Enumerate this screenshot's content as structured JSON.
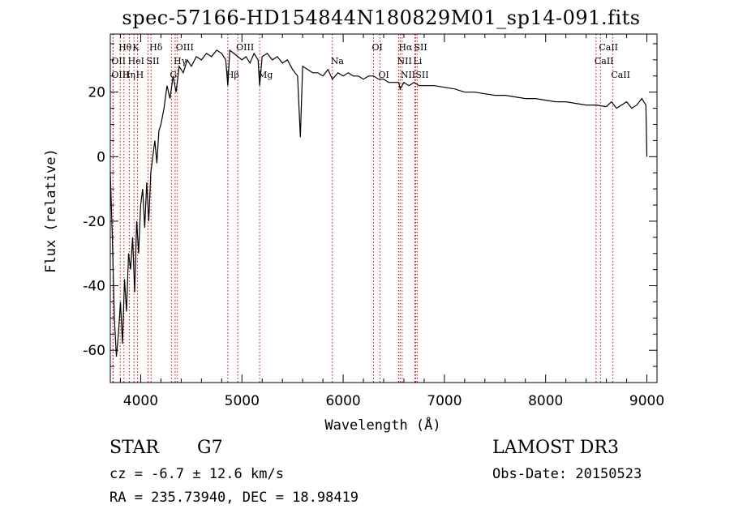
{
  "chart_data": {
    "type": "line",
    "title": "spec-57166-HD154844N180829M01_sp14-091.fits",
    "xlabel": "Wavelength (Å)",
    "ylabel": "Flux (relative)",
    "xlim": [
      3700,
      9100
    ],
    "ylim": [
      -70,
      38
    ],
    "x_ticks": [
      4000,
      5000,
      6000,
      7000,
      8000,
      9000
    ],
    "y_ticks": [
      -60,
      -40,
      -20,
      0,
      20
    ],
    "grid": false,
    "series": [
      {
        "x": [
          3700,
          3720,
          3740,
          3760,
          3780,
          3800,
          3820,
          3840,
          3860,
          3880,
          3900,
          3920,
          3940,
          3960,
          3980,
          4000,
          4020,
          4040,
          4060,
          4080,
          4100,
          4120,
          4140,
          4160,
          4180,
          4200,
          4230,
          4260,
          4290,
          4320,
          4350,
          4380,
          4420,
          4460,
          4500,
          4550,
          4600,
          4650,
          4700,
          4750,
          4800,
          4840,
          4861,
          4880,
          4920,
          4960,
          5000,
          5040,
          5080,
          5120,
          5160,
          5175,
          5200,
          5250,
          5300,
          5350,
          5400,
          5450,
          5500,
          5550,
          5577,
          5600,
          5650,
          5700,
          5750,
          5800,
          5850,
          5893,
          5950,
          6000,
          6050,
          6100,
          6150,
          6200,
          6250,
          6300,
          6350,
          6400,
          6450,
          6500,
          6550,
          6563,
          6600,
          6650,
          6700,
          6750,
          6800,
          6900,
          7000,
          7100,
          7200,
          7300,
          7400,
          7500,
          7600,
          7700,
          7800,
          7900,
          8000,
          8100,
          8200,
          8300,
          8400,
          8500,
          8600,
          8650,
          8700,
          8750,
          8800,
          8850,
          8900,
          8950,
          8990,
          9000
        ],
        "y": [
          -5,
          -25,
          -50,
          -62,
          -55,
          -45,
          -58,
          -38,
          -48,
          -30,
          -35,
          -25,
          -42,
          -20,
          -30,
          -15,
          -10,
          -22,
          -8,
          -20,
          -5,
          0,
          5,
          -2,
          8,
          10,
          15,
          22,
          18,
          25,
          20,
          28,
          26,
          30,
          28,
          31,
          30,
          32,
          31,
          33,
          32,
          30,
          22,
          33,
          32,
          31,
          30,
          31,
          29,
          32,
          30,
          22,
          31,
          32,
          30,
          31,
          29,
          30,
          27,
          25,
          6,
          28,
          27,
          26,
          26,
          25,
          27,
          24,
          26,
          25,
          26,
          25,
          25,
          24,
          25,
          25,
          24,
          24,
          23,
          23,
          23,
          21,
          23,
          22,
          23,
          22,
          22,
          22,
          21.5,
          21,
          20,
          20,
          19.5,
          19,
          19,
          18.5,
          18,
          18,
          17.5,
          17,
          17,
          16.5,
          16,
          16,
          15.5,
          17,
          15,
          16,
          17,
          15,
          16,
          18,
          16,
          0
        ]
      }
    ],
    "line_markers": [
      {
        "label": "Hθ",
        "x": 3798,
        "row": 1
      },
      {
        "label": "OII",
        "x": 3727,
        "row": 2
      },
      {
        "label": "OIII",
        "x": 3727,
        "row": 3
      },
      {
        "label": "K",
        "x": 3934,
        "row": 1
      },
      {
        "label": "HeI",
        "x": 3889,
        "row": 2
      },
      {
        "label": "Hη",
        "x": 3835,
        "row": 3
      },
      {
        "label": "SII",
        "x": 4072,
        "row": 2
      },
      {
        "label": "H",
        "x": 3969,
        "row": 3
      },
      {
        "label": "Hδ",
        "x": 4102,
        "row": 1
      },
      {
        "label": "OIII",
        "x": 4363,
        "row": 1
      },
      {
        "label": "Hγ",
        "x": 4341,
        "row": 2
      },
      {
        "label": "G",
        "x": 4304,
        "row": 3
      },
      {
        "label": "OIII",
        "x": 4959,
        "row": 1
      },
      {
        "label": "Hβ",
        "x": 4861,
        "row": 3
      },
      {
        "label": "Mg",
        "x": 5175,
        "row": 3
      },
      {
        "label": "Na",
        "x": 5893,
        "row": 2
      },
      {
        "label": "OI",
        "x": 6300,
        "row": 1
      },
      {
        "label": "OI",
        "x": 6364,
        "row": 3
      },
      {
        "label": "Hα",
        "x": 6563,
        "row": 1
      },
      {
        "label": "SII",
        "x": 6716,
        "row": 1
      },
      {
        "label": "NII",
        "x": 6548,
        "row": 2
      },
      {
        "label": "Li",
        "x": 6708,
        "row": 2
      },
      {
        "label": "NII",
        "x": 6583,
        "row": 3
      },
      {
        "label": "SII",
        "x": 6731,
        "row": 3
      },
      {
        "label": "CaII",
        "x": 8542,
        "row": 1
      },
      {
        "label": "CaII",
        "x": 8498,
        "row": 2
      },
      {
        "label": "CaII",
        "x": 8662,
        "row": 3
      }
    ],
    "colors": {
      "spectrum": "#000000",
      "markers": "#cc0000"
    }
  },
  "info": {
    "object_class": "STAR",
    "subclass": "G7",
    "survey": "LAMOST DR3",
    "cz": "cz = -6.7 ± 12.6 km/s",
    "obs_date": "Obs-Date: 20150523",
    "coords": "RA = 235.73940, DEC =  18.98419"
  }
}
